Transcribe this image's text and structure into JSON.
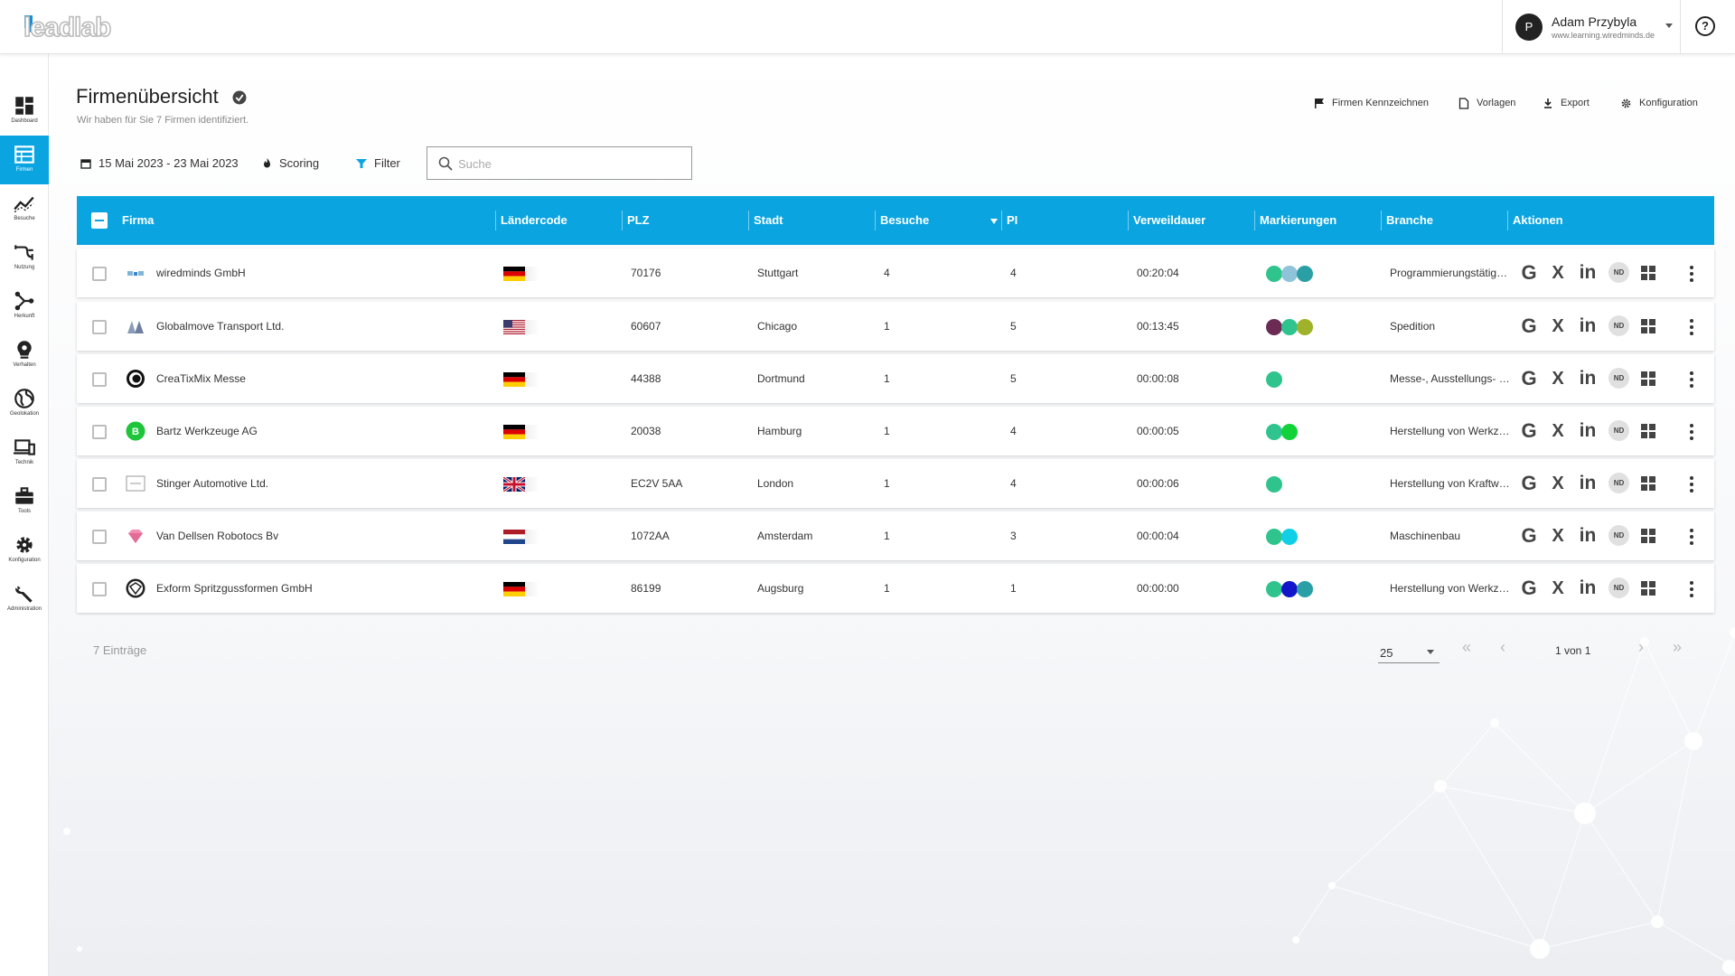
{
  "header": {
    "logo_text": "leadlab",
    "user_initial": "P",
    "user_name": "Adam Przybyla",
    "user_sub": "www.learning.wiredminds.de",
    "help_icon": "help-circle-icon"
  },
  "sidebar": {
    "items": [
      {
        "label": "Dashboard",
        "icon": "dashboard-icon"
      },
      {
        "label": "Firmen",
        "icon": "firmen-icon",
        "active": true
      },
      {
        "label": "Besuche",
        "icon": "besuche-icon"
      },
      {
        "label": "Nutzung",
        "icon": "nutzung-icon"
      },
      {
        "label": "Herkunft",
        "icon": "herkunft-icon"
      },
      {
        "label": "Verhalten",
        "icon": "verhalten-icon"
      },
      {
        "label": "Geolokation",
        "icon": "globe-icon"
      },
      {
        "label": "Technik",
        "icon": "technik-icon"
      },
      {
        "label": "Tools",
        "icon": "tools-icon"
      },
      {
        "label": "Konfiguration",
        "icon": "gear-icon"
      },
      {
        "label": "Administration",
        "icon": "wrench-icon"
      }
    ]
  },
  "page": {
    "title": "Firmenübersicht",
    "subtitle": "Wir haben für Sie 7 Firmen identifiziert."
  },
  "top_actions": {
    "flag": "Firmen Kennzeichnen",
    "templates": "Vorlagen",
    "export": "Export",
    "config": "Konfiguration"
  },
  "filters": {
    "date_range": "15 Mai 2023 - 23 Mai 2023",
    "scoring": "Scoring",
    "filter": "Filter",
    "search_placeholder": "Suche"
  },
  "table": {
    "columns": {
      "firma": "Firma",
      "land": "Ländercode",
      "plz": "PLZ",
      "stadt": "Stadt",
      "besuche": "Besuche",
      "pi": "PI",
      "verweil": "Verweildauer",
      "mark": "Markierungen",
      "branche": "Branche",
      "aktionen": "Aktionen"
    },
    "actions": {
      "google": "G",
      "xing": "X",
      "linkedin": "in",
      "nd": "ND"
    },
    "rows": [
      {
        "firma": "wiredminds GmbH",
        "flag": "de",
        "plz": "70176",
        "stadt": "Stuttgart",
        "besuche": "4",
        "pi": "4",
        "verweil": "00:20:04",
        "marks": [
          "#2fc48d",
          "#8fc3d9",
          "#2a9fa6"
        ],
        "branche": "Programmierungstätigkeiten",
        "logo": "wm"
      },
      {
        "firma": "Globalmove Transport Ltd.",
        "flag": "us",
        "plz": "60607",
        "stadt": "Chicago",
        "besuche": "1",
        "pi": "5",
        "verweil": "00:13:45",
        "marks": [
          "#6b2b55",
          "#2fc48d",
          "#9fb22a"
        ],
        "branche": "Spedition",
        "logo": "gm"
      },
      {
        "firma": "CreaTixMix Messe",
        "flag": "de",
        "plz": "44388",
        "stadt": "Dortmund",
        "besuche": "1",
        "pi": "5",
        "verweil": "00:00:08",
        "marks": [
          "#2fc48d"
        ],
        "branche": "Messe-, Ausstellungs- und Kongressveranstalter",
        "logo": "ctm"
      },
      {
        "firma": "Bartz Werkzeuge AG",
        "flag": "de",
        "plz": "20038",
        "stadt": "Hamburg",
        "besuche": "1",
        "pi": "4",
        "verweil": "00:00:05",
        "marks": [
          "#2fc48d",
          "#12d23a"
        ],
        "branche": "Herstellung von Werkzeugen",
        "logo": "b"
      },
      {
        "firma": "Stinger Automotive Ltd.",
        "flag": "gb",
        "plz": "EC2V 5AA",
        "stadt": "London",
        "besuche": "1",
        "pi": "4",
        "verweil": "00:00:06",
        "marks": [
          "#2fc48d"
        ],
        "branche": "Herstellung von Kraftwagen",
        "logo": "sa"
      },
      {
        "firma": "Van Dellsen Robotocs Bv",
        "flag": "nl",
        "plz": "1072AA",
        "stadt": "Amsterdam",
        "besuche": "1",
        "pi": "3",
        "verweil": "00:00:04",
        "marks": [
          "#2fc48d",
          "#12cfe8"
        ],
        "branche": "Maschinenbau",
        "logo": "vd"
      },
      {
        "firma": "Exform Spritzgussformen GmbH",
        "flag": "de",
        "plz": "86199",
        "stadt": "Augsburg",
        "besuche": "1",
        "pi": "1",
        "verweil": "00:00:00",
        "marks": [
          "#2fc48d",
          "#1216c8",
          "#2a9fa6"
        ],
        "branche": "Herstellung von Werkzeugen",
        "logo": "ex"
      }
    ]
  },
  "footer": {
    "entries": "7 Einträge",
    "page_size": "25",
    "page_info": "1 von 1"
  },
  "colors": {
    "accent": "#0aa5e0"
  }
}
